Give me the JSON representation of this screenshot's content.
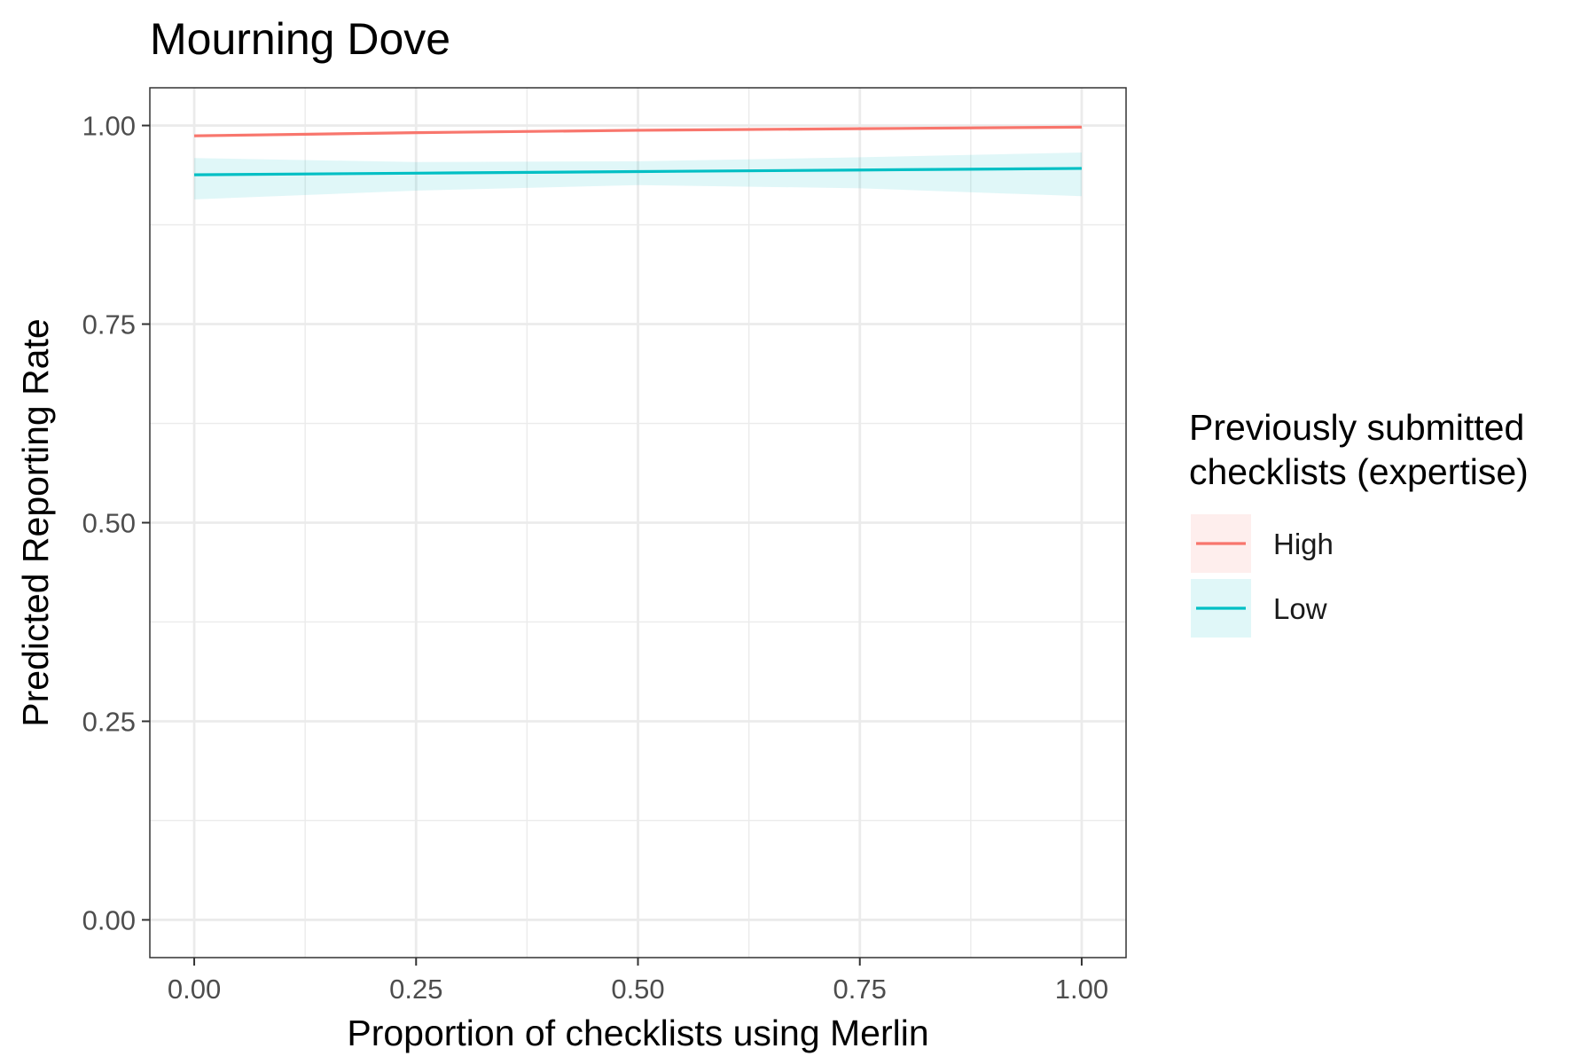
{
  "chart_data": {
    "type": "line",
    "title": "Mourning Dove",
    "xlabel": "Proportion of checklists using Merlin",
    "ylabel": "Predicted Reporting Rate",
    "xlim": [
      -0.05,
      1.05
    ],
    "ylim": [
      -0.0475,
      1.0475
    ],
    "x_ticks": [
      0.0,
      0.25,
      0.5,
      0.75,
      1.0
    ],
    "x_tick_labels": [
      "0.00",
      "0.25",
      "0.50",
      "0.75",
      "1.00"
    ],
    "y_ticks": [
      0.0,
      0.25,
      0.5,
      0.75,
      1.0
    ],
    "y_tick_labels": [
      "0.00",
      "0.25",
      "0.50",
      "0.75",
      "1.00"
    ],
    "grid": true,
    "legend": {
      "title_lines": [
        "Previously submitted",
        "checklists (expertise)"
      ],
      "placement": "right"
    },
    "series": [
      {
        "name": "High",
        "color": "#F8766D",
        "x": [
          0.0,
          0.25,
          0.5,
          0.75,
          1.0
        ],
        "y": [
          0.987,
          0.991,
          0.994,
          0.996,
          0.998
        ],
        "lower": [
          0.985,
          0.99,
          0.993,
          0.995,
          0.996
        ],
        "upper": [
          0.989,
          0.992,
          0.995,
          0.997,
          0.999
        ]
      },
      {
        "name": "Low",
        "color": "#00BFC4",
        "x": [
          0.0,
          0.25,
          0.5,
          0.75,
          1.0
        ],
        "y": [
          0.938,
          0.94,
          0.942,
          0.944,
          0.946
        ],
        "lower": [
          0.907,
          0.918,
          0.925,
          0.921,
          0.911
        ],
        "upper": [
          0.959,
          0.954,
          0.955,
          0.96,
          0.966
        ]
      }
    ]
  }
}
